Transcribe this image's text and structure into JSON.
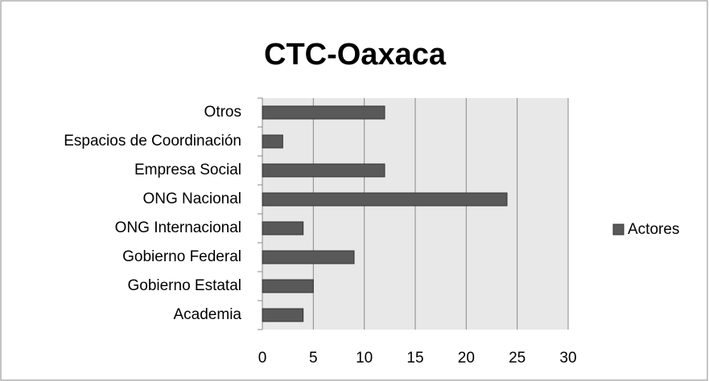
{
  "chart_data": {
    "type": "bar",
    "orientation": "horizontal",
    "title": "CTC-Oaxaca",
    "categories": [
      "Otros",
      "Espacios de Coordinación",
      "Empresa Social",
      "ONG Nacional",
      "ONG Internacional",
      "Gobierno Federal",
      "Gobierno Estatal",
      "Academia"
    ],
    "series": [
      {
        "name": "Actores",
        "color": "#595959",
        "values": [
          12,
          2,
          12,
          24,
          4,
          9,
          5,
          4
        ]
      }
    ],
    "xlim": [
      0,
      30
    ],
    "xticks": [
      0,
      5,
      10,
      15,
      20,
      25,
      30
    ],
    "grid": true,
    "legend": "right"
  }
}
